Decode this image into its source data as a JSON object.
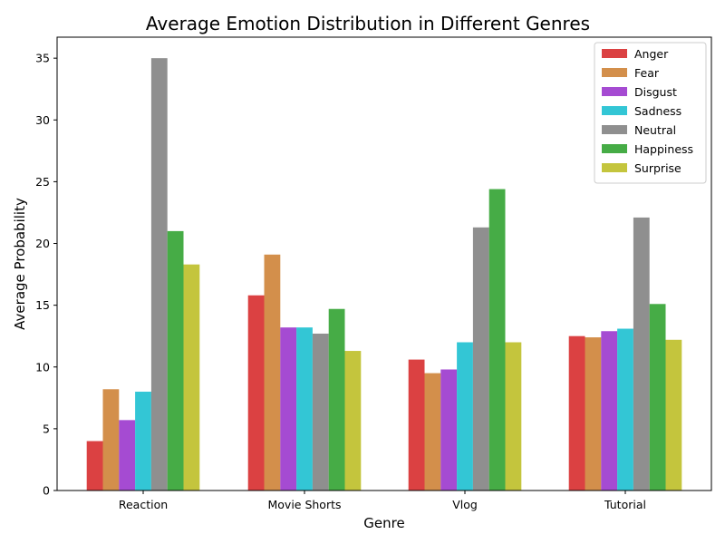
{
  "chart_data": {
    "type": "bar",
    "title": "Average Emotion Distribution in Different Genres",
    "xlabel": "Genre",
    "ylabel": "Average Probability",
    "categories": [
      "Reaction",
      "Movie Shorts",
      "Vlog",
      "Tutorial"
    ],
    "ylim": [
      0,
      36.7
    ],
    "yticks": [
      0,
      5,
      10,
      15,
      20,
      25,
      30,
      35
    ],
    "grid": false,
    "legend_position": "top-right",
    "series": [
      {
        "name": "Anger",
        "color": "#d62728",
        "values": [
          4.0,
          15.8,
          10.6,
          12.5
        ]
      },
      {
        "name": "Fear",
        "color": "#cd7f32",
        "values": [
          8.2,
          19.1,
          9.5,
          12.4
        ]
      },
      {
        "name": "Disgust",
        "color": "#9932cc",
        "values": [
          5.7,
          13.2,
          9.8,
          12.9
        ]
      },
      {
        "name": "Sadness",
        "color": "#17becf",
        "values": [
          8.0,
          13.2,
          12.0,
          13.1
        ]
      },
      {
        "name": "Neutral",
        "color": "#7f7f7f",
        "values": [
          35.0,
          12.7,
          21.3,
          22.1
        ]
      },
      {
        "name": "Happiness",
        "color": "#2ca02c",
        "values": [
          21.0,
          14.7,
          24.4,
          15.1
        ]
      },
      {
        "name": "Surprise",
        "color": "#bcbd22",
        "values": [
          18.3,
          11.3,
          12.0,
          12.2
        ]
      }
    ]
  }
}
